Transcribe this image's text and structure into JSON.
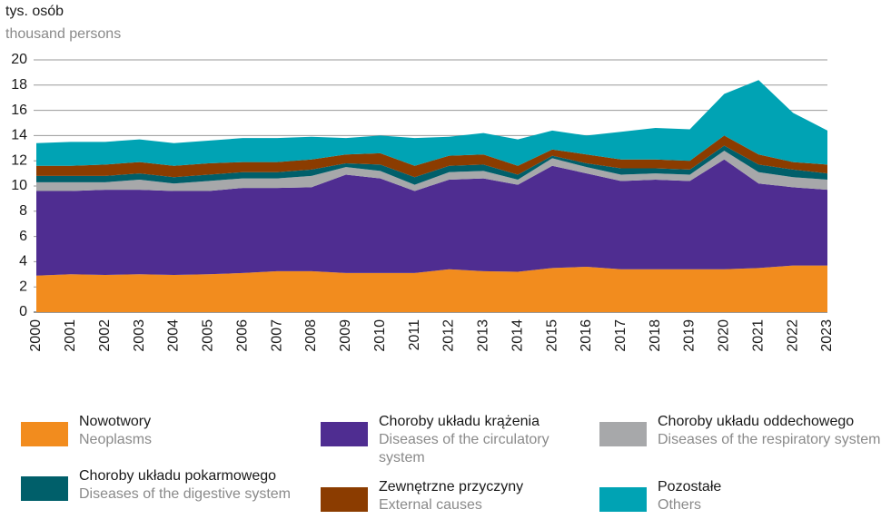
{
  "chart_data": {
    "type": "stacked_area",
    "y_label": "tys. osób",
    "y_label_en": "thousand persons",
    "categories": [
      "2000",
      "2001",
      "2002",
      "2003",
      "2004",
      "2005",
      "2006",
      "2007",
      "2008",
      "2009",
      "2010",
      "2011",
      "2012",
      "2013",
      "2014",
      "2015",
      "2016",
      "2017",
      "2018",
      "2019",
      "2020",
      "2021",
      "2022",
      "2023"
    ],
    "ylim": [
      0,
      20
    ],
    "yticks": [
      0,
      2,
      4,
      6,
      8,
      10,
      12,
      14,
      16,
      18,
      20
    ],
    "grid": true,
    "series": [
      {
        "name": "Nowotwory",
        "name_en": "Neoplasms",
        "color": "#f28c1e",
        "values": [
          2.9,
          3.0,
          2.95,
          3.0,
          2.95,
          3.0,
          3.1,
          3.25,
          3.25,
          3.1,
          3.1,
          3.1,
          3.4,
          3.25,
          3.2,
          3.5,
          3.6,
          3.4,
          3.4,
          3.4,
          3.4,
          3.5,
          3.7,
          3.7
        ]
      },
      {
        "name": "Choroby układu krążenia",
        "name_en": "Diseases of the circulatory system",
        "color": "#4f2d91",
        "values": [
          6.7,
          6.6,
          6.75,
          6.7,
          6.65,
          6.6,
          6.75,
          6.6,
          6.65,
          7.8,
          7.5,
          6.5,
          7.1,
          7.35,
          6.9,
          8.1,
          7.4,
          7.0,
          7.1,
          7.0,
          8.7,
          6.7,
          6.2,
          6.0
        ]
      },
      {
        "name": "Choroby układu oddechowego",
        "name_en": "Diseases of the respiratory system",
        "color": "#a7a8aa",
        "values": [
          0.7,
          0.7,
          0.6,
          0.8,
          0.6,
          0.8,
          0.75,
          0.75,
          0.9,
          0.6,
          0.6,
          0.5,
          0.6,
          0.6,
          0.4,
          0.6,
          0.5,
          0.5,
          0.5,
          0.5,
          0.7,
          0.9,
          0.8,
          0.8
        ]
      },
      {
        "name": "Choroby układu pokarmowego",
        "name_en": "Diseases of the digestive system",
        "color": "#005f6a",
        "values": [
          0.5,
          0.5,
          0.5,
          0.5,
          0.5,
          0.5,
          0.5,
          0.5,
          0.5,
          0.3,
          0.5,
          0.6,
          0.5,
          0.5,
          0.4,
          0.2,
          0.3,
          0.5,
          0.4,
          0.4,
          0.4,
          0.6,
          0.6,
          0.5
        ]
      },
      {
        "name": "Zewnętrzne przyczyny",
        "name_en": "External causes",
        "color": "#8b3c00",
        "values": [
          0.8,
          0.8,
          0.9,
          0.9,
          0.9,
          0.9,
          0.8,
          0.8,
          0.8,
          0.7,
          0.9,
          0.9,
          0.8,
          0.8,
          0.7,
          0.5,
          0.7,
          0.7,
          0.7,
          0.7,
          0.8,
          0.8,
          0.6,
          0.7
        ]
      },
      {
        "name": "Pozostałe",
        "name_en": "Others",
        "color": "#00a3b4",
        "values": [
          1.8,
          1.9,
          1.8,
          1.8,
          1.8,
          1.8,
          1.9,
          1.9,
          1.8,
          1.3,
          1.4,
          2.2,
          1.5,
          1.7,
          2.1,
          1.5,
          1.5,
          2.2,
          2.5,
          2.5,
          3.3,
          5.9,
          3.9,
          2.7
        ]
      }
    ]
  }
}
